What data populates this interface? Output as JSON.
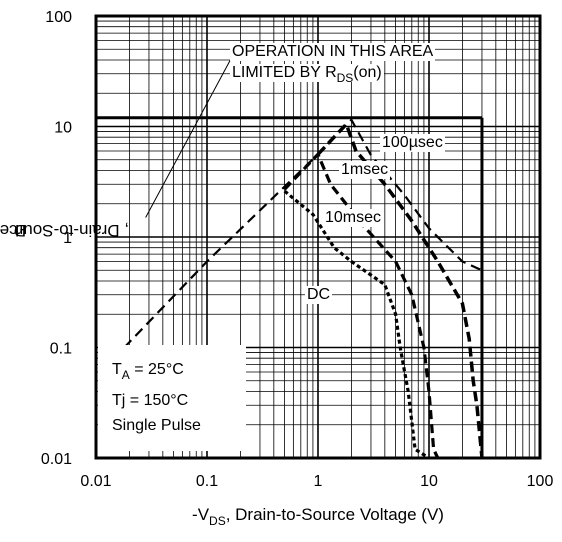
{
  "chart_data": {
    "type": "line",
    "x_scale": "log",
    "y_scale": "log",
    "xlim": [
      0.01,
      100
    ],
    "ylim": [
      0.01,
      100
    ],
    "grid": true,
    "x_ticks": [
      "0.01",
      "0.1",
      "1",
      "10",
      "100"
    ],
    "y_ticks": [
      "100",
      "10",
      "1",
      "0.1",
      "0.01"
    ],
    "xlabel": {
      "prefix": "-V",
      "sub": "DS",
      "rest": ", Drain-to-Source Voltage (V)"
    },
    "ylabel": {
      "prefix": "-I",
      "sub": "D",
      "rest": ",  Drain-to-Source Current (A)"
    },
    "limits": {
      "id_max": 12,
      "vds_max": 30
    },
    "series": [
      {
        "name": "100µsec",
        "points": [
          [
            0.018,
            0.1
          ],
          [
            0.1,
            0.6
          ],
          [
            1,
            5.6
          ],
          [
            2,
            11.5
          ],
          [
            3,
            5.5
          ],
          [
            6,
            2.4
          ],
          [
            10,
            1.2
          ],
          [
            20,
            0.6
          ],
          [
            30,
            0.5
          ]
        ]
      },
      {
        "name": "1msec",
        "points": [
          [
            1,
            5.6
          ],
          [
            1.8,
            10.5
          ],
          [
            2.2,
            6
          ],
          [
            4,
            3
          ],
          [
            7,
            1.4
          ],
          [
            12,
            0.6
          ],
          [
            20,
            0.25
          ],
          [
            23,
            0.12
          ],
          [
            25,
            0.05
          ],
          [
            27,
            0.03
          ],
          [
            30,
            0.01
          ]
        ]
      },
      {
        "name": "10msec",
        "points": [
          [
            0.5,
            2.7
          ],
          [
            1,
            5.6
          ],
          [
            1.3,
            3
          ],
          [
            2.5,
            1.3
          ],
          [
            5,
            0.6
          ],
          [
            7,
            0.3
          ],
          [
            9,
            0.1
          ],
          [
            10,
            0.04
          ],
          [
            11,
            0.012
          ],
          [
            12,
            0.01
          ]
        ]
      },
      {
        "name": "DC",
        "points": [
          [
            0.5,
            2.6
          ],
          [
            0.9,
            1.6
          ],
          [
            1.4,
            0.8
          ],
          [
            2,
            0.6
          ],
          [
            4,
            0.37
          ],
          [
            5,
            0.2
          ],
          [
            5.5,
            0.1
          ],
          [
            6.5,
            0.04
          ],
          [
            7.5,
            0.012
          ],
          [
            10,
            0.01
          ]
        ]
      }
    ],
    "annotations": [
      {
        "text": "OPERATION IN THIS AREA",
        "point": [
          0.028,
          1.5
        ]
      },
      {
        "text": "LIMITED BY R",
        "sub": "DS",
        "suffix": "(on)"
      }
    ],
    "legend": {
      "ta": "T",
      "ta_sub": "A",
      "ta_rest": " = 25°C",
      "tj": "Tj = 150°C",
      "pulse": "Single Pulse"
    }
  }
}
